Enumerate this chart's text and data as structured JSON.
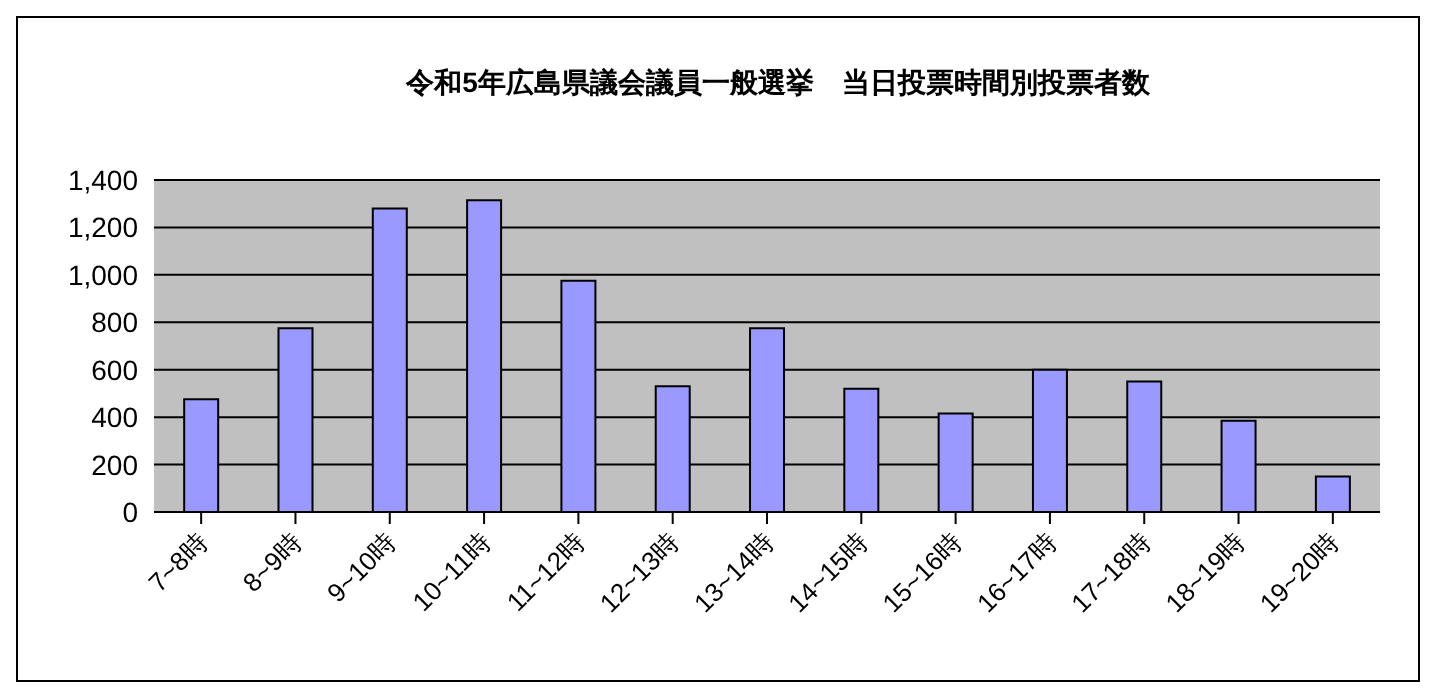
{
  "chart_data": {
    "type": "bar",
    "title": "令和5年広島県議会議員一般選挙　当日投票時間別投票者数",
    "categories": [
      "7~8時",
      "8~9時",
      "9~10時",
      "10~11時",
      "11~12時",
      "12~13時",
      "13~14時",
      "14~15時",
      "15~16時",
      "16~17時",
      "17~18時",
      "18~19時",
      "19~20時"
    ],
    "values": [
      475,
      775,
      1280,
      1315,
      975,
      530,
      775,
      520,
      415,
      600,
      550,
      385,
      150
    ],
    "color": "#9999ff",
    "ylim": [
      0,
      1400
    ],
    "yticks": [
      0,
      {
        "value": 200,
        "label": "200"
      },
      {
        "value": 400,
        "label": "400"
      },
      {
        "value": 600,
        "label": "600"
      },
      {
        "value": 800,
        "label": "800"
      },
      {
        "value": 1000,
        "label": "1,000"
      },
      {
        "value": 1200,
        "label": "1,200"
      },
      {
        "value": 1400,
        "label": "1,400"
      }
    ],
    "grid": "y",
    "legend": false
  }
}
